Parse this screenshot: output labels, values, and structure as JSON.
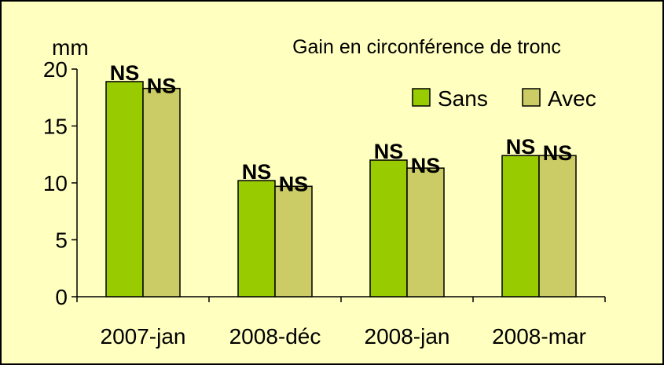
{
  "chart_data": {
    "type": "bar",
    "title": "Gain en circonférence de tronc",
    "y_unit": "mm",
    "categories": [
      "2007-jan",
      "2008-déc",
      "2008-jan",
      "2008-mar"
    ],
    "series": [
      {
        "name": "Sans",
        "color": "#99cc00",
        "values": [
          18.9,
          10.2,
          12.0,
          12.4
        ],
        "labels": [
          "NS",
          "NS",
          "NS",
          "NS"
        ]
      },
      {
        "name": "Avec",
        "color": "#cccc66",
        "values": [
          18.3,
          9.7,
          11.3,
          12.4
        ],
        "labels": [
          "NS",
          "NS",
          "NS",
          "NS"
        ]
      }
    ],
    "ylim": [
      0,
      20
    ],
    "yticks": [
      0,
      5,
      10,
      15,
      20
    ],
    "grid": false,
    "legend": "top-right"
  }
}
